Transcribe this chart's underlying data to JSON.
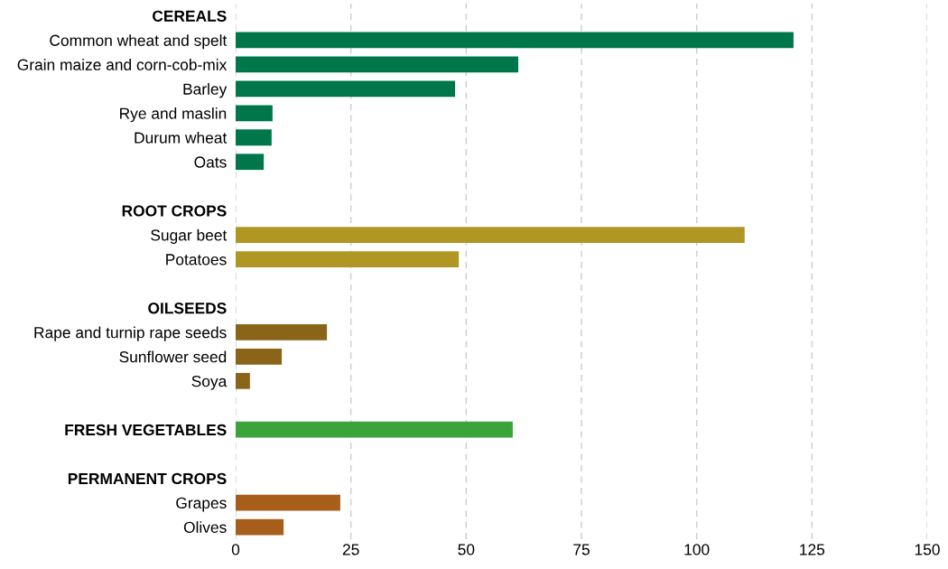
{
  "chart_data": {
    "type": "bar",
    "orientation": "horizontal",
    "categories": [
      "CEREALS",
      "Common wheat and spelt",
      "Grain maize and corn-cob-mix",
      "Barley",
      "Rye and maslin",
      "Durum wheat",
      "Oats",
      null,
      "ROOT CROPS",
      "Sugar beet",
      "Potatoes",
      null,
      "OILSEEDS",
      "Rape and turnip rape seeds",
      "Sunflower seed",
      "Soya",
      null,
      "FRESH VEGETABLES",
      null,
      "PERMANENT CROPS",
      "Grapes",
      "Olives"
    ],
    "values": [
      null,
      121,
      61.3,
      47.6,
      8.0,
      7.8,
      6.1,
      null,
      null,
      110.4,
      48.4,
      null,
      null,
      19.8,
      10.0,
      3.1,
      null,
      60.1,
      null,
      null,
      22.7,
      10.4
    ],
    "colors": [
      null,
      "#00774a",
      "#00774a",
      "#00774a",
      "#00774a",
      "#00774a",
      "#00774a",
      null,
      null,
      "#b09623",
      "#b09623",
      null,
      null,
      "#8a6418",
      "#8a6418",
      "#8a6418",
      null,
      "#3aa43a",
      null,
      null,
      "#a85e1b",
      "#a85e1b"
    ],
    "xlim": [
      0,
      150
    ],
    "xticks": [
      0,
      25,
      50,
      75,
      100,
      125,
      150
    ],
    "grid": "x"
  }
}
